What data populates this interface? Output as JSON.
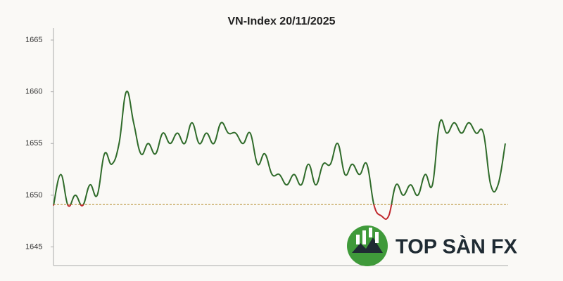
{
  "chart_data": {
    "type": "line",
    "title": "VN-Index 20/11/2025",
    "categories": [
      null,
      null,
      null,
      null,
      null,
      null,
      null,
      null,
      null,
      null,
      null,
      null,
      null,
      null,
      null,
      null,
      null,
      null,
      null,
      null,
      null,
      null,
      null,
      null,
      null,
      null,
      null,
      null,
      null,
      null,
      null,
      null,
      null,
      null,
      null,
      null,
      null,
      null,
      null,
      null,
      null,
      null,
      null,
      null,
      null,
      null,
      null,
      null,
      null,
      null,
      null,
      null,
      null,
      null,
      null,
      null,
      null,
      null,
      null,
      null,
      null,
      null,
      null
    ],
    "series": [
      {
        "name": "VN-Index",
        "color": "#2f6b2a",
        "values": [
          1649,
          1652,
          1649,
          1650,
          1649,
          1651,
          1650,
          1654,
          1653,
          1655,
          1660,
          1657,
          1654,
          1655,
          1654,
          1656,
          1655,
          1656,
          1655,
          1657,
          1655,
          1656,
          1655,
          1657,
          1656,
          1656,
          1655,
          1656,
          1653,
          1654,
          1652,
          1652,
          1651,
          1652,
          1651,
          1653,
          1651,
          1653,
          1653,
          1655,
          1652,
          1653,
          1652,
          1653,
          1649,
          1648,
          1648,
          1651,
          1650,
          1651,
          1650,
          1652,
          1651,
          1657,
          1656,
          1657,
          1656,
          1657,
          1656,
          1656,
          1651,
          1651,
          1655
        ]
      }
    ],
    "reference_line": 1649.1,
    "below_color": "#c0282d",
    "ylim": [
      1643.2,
      1665
    ],
    "yticks": [
      1645,
      1650,
      1655,
      1660,
      1665
    ],
    "watermark": "TOP SÀN FX"
  }
}
